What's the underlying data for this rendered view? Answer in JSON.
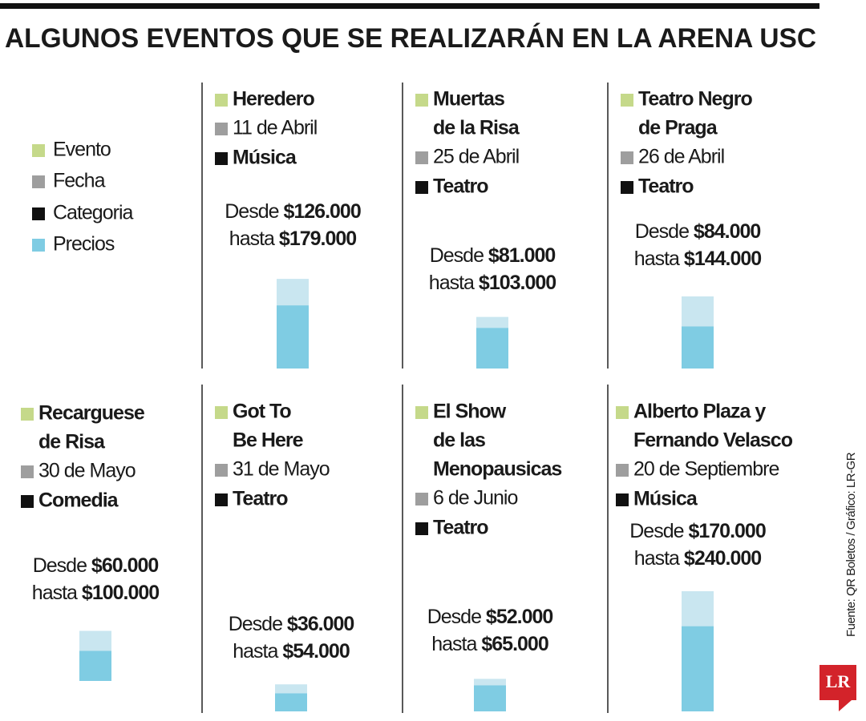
{
  "chart_data": {
    "type": "bar",
    "title": "ALGUNOS EVENTOS QUE SE REALIZARÁN EN LA ARENA USC",
    "legend": [
      {
        "label": "Evento",
        "color": "#c5d98a"
      },
      {
        "label": "Fecha",
        "color": "#9e9e9e"
      },
      {
        "label": "Categoria",
        "color": "#111111"
      },
      {
        "label": "Precios",
        "color": "#7fcce3"
      }
    ],
    "from_word": "Desde",
    "to_word": "hasta",
    "max_color": "#c9e6f0",
    "events": [
      {
        "name": [
          "Heredero"
        ],
        "date": "11 de Abril",
        "category": "Música",
        "from": {
          "value": 126000,
          "label": "$126.000"
        },
        "to": {
          "value": 179000,
          "label": "$179.000"
        }
      },
      {
        "name": [
          "Muertas",
          "de la Risa"
        ],
        "date": "25 de Abril",
        "category": "Teatro",
        "from": {
          "value": 81000,
          "label": "$81.000"
        },
        "to": {
          "value": 103000,
          "label": "$103.000"
        }
      },
      {
        "name": [
          "Teatro Negro",
          "de Praga"
        ],
        "date": "26 de Abril",
        "category": "Teatro",
        "from": {
          "value": 84000,
          "label": "$84.000"
        },
        "to": {
          "value": 144000,
          "label": "$144.000"
        }
      },
      {
        "name": [
          "Recarguese",
          "de Risa"
        ],
        "date": "30 de Mayo",
        "category": "Comedia",
        "from": {
          "value": 60000,
          "label": "$60.000"
        },
        "to": {
          "value": 100000,
          "label": "$100.000"
        }
      },
      {
        "name": [
          "Got To",
          "Be Here"
        ],
        "date": "31 de Mayo",
        "category": "Teatro",
        "from": {
          "value": 36000,
          "label": "$36.000"
        },
        "to": {
          "value": 54000,
          "label": "$54.000"
        }
      },
      {
        "name": [
          "El Show",
          "de las",
          "Menopausicas"
        ],
        "date": "6 de Junio",
        "category": "Teatro",
        "from": {
          "value": 52000,
          "label": "$52.000"
        },
        "to": {
          "value": 65000,
          "label": "$65.000"
        }
      },
      {
        "name": [
          "Alberto Plaza y",
          "Fernando Velasco"
        ],
        "date": "20 de Septiembre",
        "category": "Música",
        "from": {
          "value": 170000,
          "label": "$170.000"
        },
        "to": {
          "value": 240000,
          "label": "$240.000"
        }
      }
    ],
    "source": "Fuente: QR Boletos / Gráfico: LR-GR",
    "logo": "LR"
  }
}
